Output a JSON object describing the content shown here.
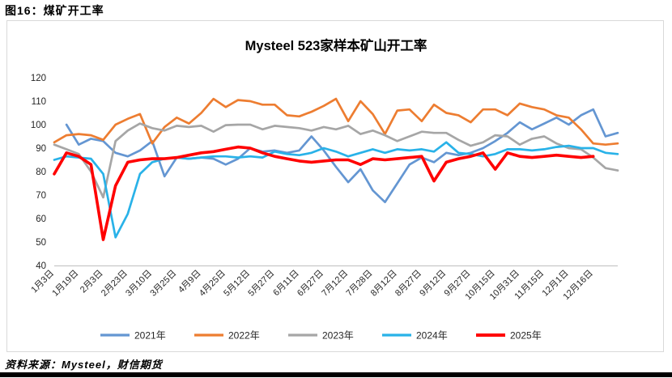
{
  "header": {
    "caption": "图16：煤矿开工率"
  },
  "footer": {
    "source": "资料来源：Mysteel，财信期货"
  },
  "chart_data": {
    "type": "line",
    "title": "Mysteel 523家样本矿山开工率",
    "ylim": [
      40,
      120
    ],
    "y_ticks": [
      120,
      110,
      100,
      90,
      80,
      70,
      60,
      50,
      40
    ],
    "grid": false,
    "legend_position": "bottom",
    "axis_color": "#bfbfbf",
    "text_color": "#262626",
    "x_note": "weekly points; tick labels shown every 2nd point",
    "x_tick_labels": [
      "1月3日",
      "1月19日",
      "2月3日",
      "2月23日",
      "3月10日",
      "3月25日",
      "4月9日",
      "4月25日",
      "5月12日",
      "5月27日",
      "6月11日",
      "6月27日",
      "7月12日",
      "7月28日",
      "8月12日",
      "8月27日",
      "9月12日",
      "9月27日",
      "10月15日",
      "10月31日",
      "11月15日",
      "12月1日",
      "12月16日"
    ],
    "points_count": 47,
    "series": [
      {
        "name": "2021年",
        "color": "#6496d2",
        "stroke_width": 2.7,
        "values": [
          null,
          100,
          91.5,
          94,
          93,
          88,
          86.5,
          89,
          93,
          78,
          86,
          85.5,
          86,
          85.5,
          83,
          85.5,
          90,
          88.5,
          89,
          88,
          89,
          95,
          89,
          82,
          75.5,
          81,
          72,
          67,
          75,
          83,
          86,
          84,
          88,
          87,
          88,
          90,
          93,
          96.5,
          101,
          98,
          100.5,
          103,
          100,
          104,
          106.5,
          95,
          96.5
        ]
      },
      {
        "name": "2022年",
        "color": "#ed7d31",
        "stroke_width": 2.7,
        "values": [
          92.5,
          95.5,
          96,
          95.5,
          93.5,
          100,
          102.5,
          104.5,
          92,
          99,
          103,
          100.5,
          105,
          111,
          107.5,
          110.5,
          110,
          108.5,
          108.5,
          104,
          103.5,
          105.5,
          108,
          111,
          101.5,
          110,
          104.5,
          96,
          106,
          106.5,
          101.5,
          108.5,
          105,
          104,
          101,
          106.5,
          106.5,
          104,
          109,
          107.5,
          106.5,
          104,
          103,
          98,
          92,
          91.5,
          92
        ]
      },
      {
        "name": "2023年",
        "color": "#a6a6a6",
        "stroke_width": 2.7,
        "values": [
          91.5,
          89.5,
          87.5,
          80,
          69,
          93,
          97.5,
          100.5,
          98.5,
          97.5,
          99.5,
          99,
          99.5,
          97,
          99.8,
          100,
          100,
          98,
          99.5,
          99,
          98.5,
          97.5,
          99,
          98,
          99.5,
          96,
          97.5,
          95.5,
          93,
          95,
          97,
          96.5,
          96.5,
          93.5,
          91,
          92.5,
          95.5,
          95,
          91.5,
          94,
          95,
          92,
          90,
          89.5,
          86,
          81.5,
          80.5
        ]
      },
      {
        "name": "2024年",
        "color": "#29b2e8",
        "stroke_width": 2.7,
        "values": [
          85,
          86.5,
          86,
          85.5,
          79,
          52,
          62,
          79,
          84,
          85.5,
          86,
          85.5,
          86,
          86.5,
          86.5,
          86,
          86.5,
          86,
          88.5,
          87.5,
          87,
          88,
          90,
          88.5,
          86.5,
          88,
          89.5,
          88,
          89.5,
          89,
          89.5,
          88.5,
          92.5,
          88,
          87.5,
          86.5,
          87.5,
          89.5,
          89.5,
          89,
          89.5,
          90.5,
          91,
          90,
          90,
          88,
          87.5
        ]
      },
      {
        "name": "2025年",
        "color": "#ff0000",
        "stroke_width": 3.6,
        "values": [
          79,
          88,
          86.5,
          83,
          51,
          74,
          84,
          85,
          85.5,
          85.5,
          86,
          87,
          88,
          88.5,
          89.5,
          90.5,
          90,
          88,
          86.5,
          85.5,
          84.5,
          84,
          84.5,
          85,
          85,
          83,
          85.5,
          85,
          85.5,
          86,
          86.5,
          76,
          84,
          85.5,
          86.5,
          88,
          81,
          88,
          86.5,
          86,
          86.5,
          87,
          86.5,
          86,
          86.5,
          null,
          null
        ]
      }
    ]
  }
}
